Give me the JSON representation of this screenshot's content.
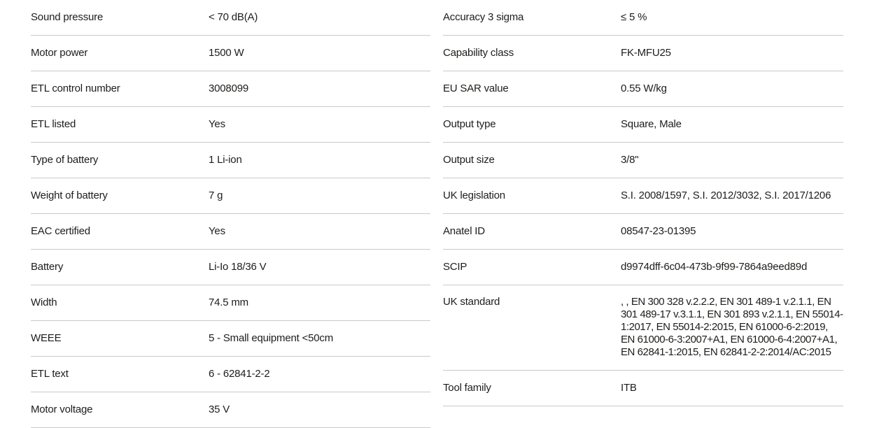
{
  "page": {
    "background_color": "#ffffff",
    "divider_color": "#c9c9c9",
    "text_color": "#1d1d1b"
  },
  "spec_table_left": {
    "rows": [
      {
        "label": "Sound pressure",
        "value": "< 70 dB(A)"
      },
      {
        "label": "Motor power",
        "value": "1500 W"
      },
      {
        "label": "ETL control number",
        "value": "3008099"
      },
      {
        "label": "ETL listed",
        "value": "Yes"
      },
      {
        "label": "Type of battery",
        "value": "1 Li-ion"
      },
      {
        "label": "Weight of battery",
        "value": "7 g"
      },
      {
        "label": "EAC certified",
        "value": "Yes"
      },
      {
        "label": "Battery",
        "value": "Li-Io 18/36 V"
      },
      {
        "label": "Width",
        "value": "74.5 mm"
      },
      {
        "label": "WEEE",
        "value": "5 - Small equipment <50cm"
      },
      {
        "label": "ETL text",
        "value": "6 - 62841-2-2"
      },
      {
        "label": "Motor voltage",
        "value": "35 V"
      }
    ]
  },
  "spec_table_right": {
    "rows": [
      {
        "label": "Accuracy 3 sigma",
        "value": "≤ 5 %"
      },
      {
        "label": "Capability class",
        "value": "FK-MFU25"
      },
      {
        "label": "EU SAR value",
        "value": "0.55 W/kg"
      },
      {
        "label": "Output type",
        "value": "Square, Male"
      },
      {
        "label": "Output size",
        "value": "3/8\""
      },
      {
        "label": "UK legislation",
        "value": "S.I. 2008/1597, S.I. 2012/3032, S.I. 2017/1206"
      },
      {
        "label": "Anatel ID",
        "value": "08547-23-01395"
      },
      {
        "label": "SCIP",
        "value": "d9974dff-6c04-473b-9f99-7864a9eed89d"
      },
      {
        "label": "UK standard",
        "value": ", , EN 300 328 v.2.2.2, EN 301 489-1 v.2.1.1, EN 301 489-17 v.3.1.1, EN 301 893 v.2.1.1, EN 55014-1:2017, EN 55014-2:2015, EN 61000-6-2:2019, EN 61000-6-3:2007+A1, EN 61000-6-4:2007+A1, EN 62841-1:2015, EN 62841-2-2:2014/AC:2015",
        "multiline": true
      },
      {
        "label": "Tool family",
        "value": "ITB"
      }
    ]
  }
}
